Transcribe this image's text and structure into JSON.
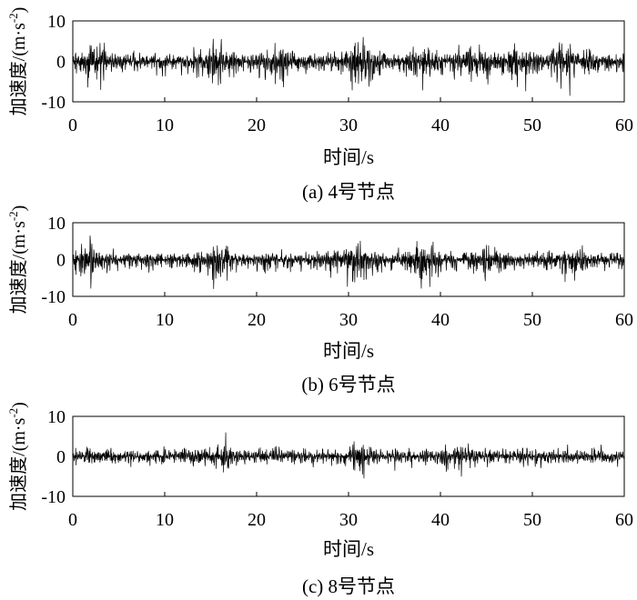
{
  "chart_data": [
    {
      "type": "line",
      "caption": "(a) 4号节点",
      "xlabel": "时间/s",
      "ylabel": "加速度/(m·s",
      "ylabel_exp": "-2",
      "ylabel_close": ")",
      "xlim": [
        0,
        60
      ],
      "ylim": [
        -10,
        10
      ],
      "xticks": [
        "0",
        "10",
        "20",
        "30",
        "40",
        "50",
        "60"
      ],
      "yticks": [
        "10",
        "0",
        "-10"
      ],
      "grid": false,
      "signal": {
        "sample_interval": 0.04,
        "base_amplitude": 1.9,
        "bursts": [
          {
            "t": 2.5,
            "w": 1.5,
            "a": 3.0
          },
          {
            "t": 15.5,
            "w": 1.5,
            "a": 2.5
          },
          {
            "t": 22.0,
            "w": 1.8,
            "a": 2.0
          },
          {
            "t": 31.5,
            "w": 1.6,
            "a": 4.0
          },
          {
            "t": 38.0,
            "w": 1.5,
            "a": 2.5
          },
          {
            "t": 43.5,
            "w": 2.0,
            "a": 2.5
          },
          {
            "t": 48.0,
            "w": 1.8,
            "a": 2.0
          },
          {
            "t": 54.0,
            "w": 1.6,
            "a": 2.5
          }
        ],
        "peak_max": 6,
        "peak_min": -8.5
      }
    },
    {
      "type": "line",
      "caption": "(b) 6号节点",
      "xlabel": "时间/s",
      "ylabel": "加速度/(m·s",
      "ylabel_exp": "-2",
      "ylabel_close": ")",
      "xlim": [
        0,
        60
      ],
      "ylim": [
        -10,
        10
      ],
      "xticks": [
        "0",
        "10",
        "20",
        "30",
        "40",
        "50",
        "60"
      ],
      "yticks": [
        "10",
        "0",
        "-10"
      ],
      "grid": false,
      "signal": {
        "sample_interval": 0.04,
        "base_amplitude": 2.0,
        "bursts": [
          {
            "t": 2.0,
            "w": 1.5,
            "a": 2.5
          },
          {
            "t": 15.5,
            "w": 1.5,
            "a": 2.5
          },
          {
            "t": 30.5,
            "w": 1.8,
            "a": 4.0
          },
          {
            "t": 38.0,
            "w": 1.5,
            "a": 2.5
          },
          {
            "t": 45.0,
            "w": 2.0,
            "a": 2.0
          },
          {
            "t": 54.0,
            "w": 2.0,
            "a": 2.0
          }
        ],
        "peak_max": 6.5,
        "peak_min": -8
      }
    },
    {
      "type": "line",
      "caption": "(c) 8号节点",
      "xlabel": "时间/s",
      "ylabel": "加速度/(m·s",
      "ylabel_exp": "-2",
      "ylabel_close": ")",
      "xlim": [
        0,
        60
      ],
      "ylim": [
        -10,
        10
      ],
      "xticks": [
        "0",
        "10",
        "20",
        "30",
        "40",
        "50",
        "60"
      ],
      "yticks": [
        "10",
        "0",
        "-10"
      ],
      "grid": false,
      "signal": {
        "sample_interval": 0.04,
        "base_amplitude": 1.8,
        "bursts": [
          {
            "t": 16.0,
            "w": 1.2,
            "a": 2.0
          },
          {
            "t": 31.5,
            "w": 1.2,
            "a": 2.5
          },
          {
            "t": 42.0,
            "w": 1.5,
            "a": 1.5
          }
        ],
        "peak_max": 6,
        "peak_min": -5.5
      }
    }
  ]
}
